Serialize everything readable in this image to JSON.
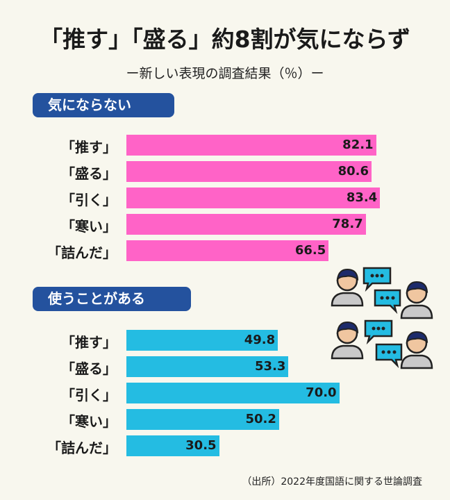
{
  "title": "「推す」「盛る」約8割が気にならず",
  "subtitle": "ー新しい表現の調査結果（％）ー",
  "source": "（出所）2022年度国語に関する世論調査",
  "colors": {
    "pink": "#ff63c7",
    "cyan": "#24bce2",
    "label_bg": "#24529e"
  },
  "icons": [
    "people-chatting-icon"
  ],
  "chart_data": [
    {
      "type": "bar",
      "title": "気にならない",
      "categories": [
        "「推す」",
        "「盛る」",
        "「引く」",
        "「寒い」",
        "「詰んだ」"
      ],
      "values": [
        82.1,
        80.6,
        83.4,
        78.7,
        66.5
      ],
      "value_labels": [
        "82.1",
        "80.6",
        "83.4",
        "78.7",
        "66.5"
      ],
      "color": "#ff63c7"
    },
    {
      "type": "bar",
      "title": "使うことがある",
      "categories": [
        "「推す」",
        "「盛る」",
        "「引く」",
        "「寒い」",
        "「詰んだ」"
      ],
      "values": [
        49.8,
        53.3,
        70.0,
        50.2,
        30.5
      ],
      "value_labels": [
        "49.8",
        "53.3",
        "70.0",
        "50.2",
        "30.5"
      ],
      "color": "#24bce2"
    }
  ]
}
